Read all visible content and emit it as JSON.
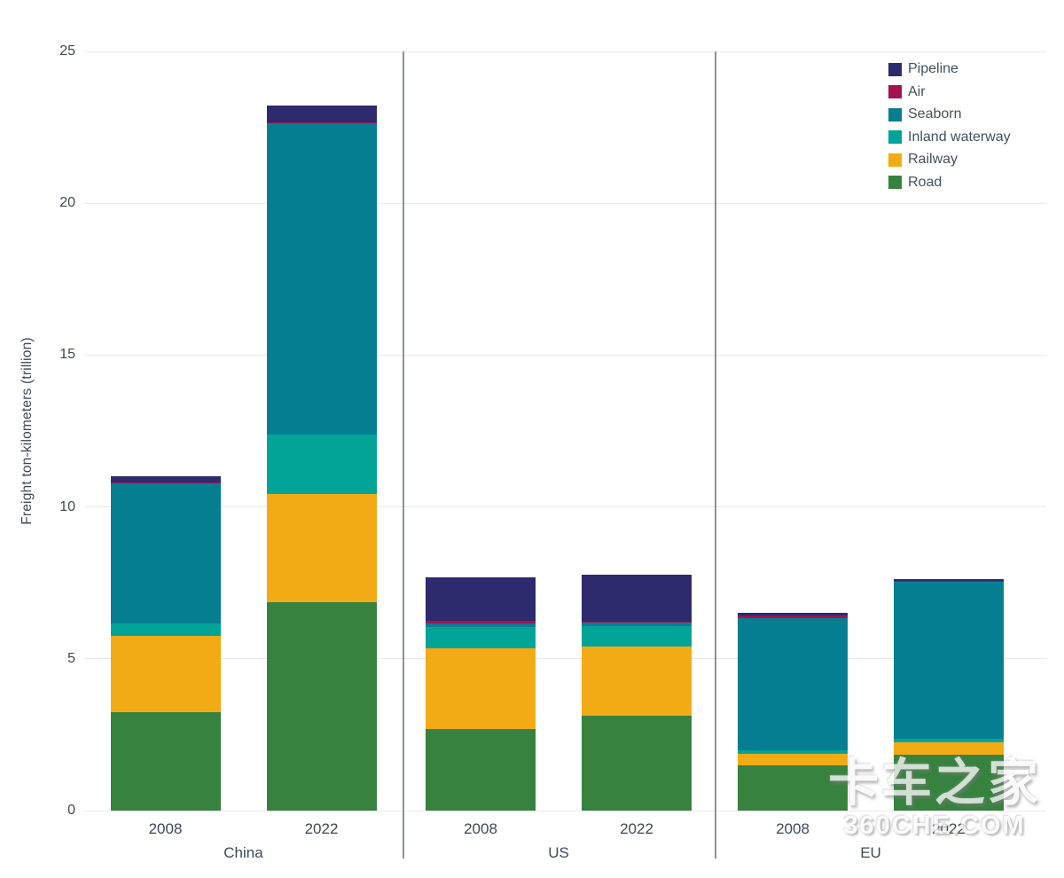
{
  "chart_data": {
    "type": "bar",
    "stacked": true,
    "ylabel": "Freight ton-kilometers (trillion)",
    "ylim": [
      0,
      25
    ],
    "yticks": [
      0,
      5,
      10,
      15,
      20,
      25
    ],
    "grid": true,
    "legend_position": "top-right",
    "legend_order": [
      "Pipeline",
      "Air",
      "Seaborn",
      "Inland waterway",
      "Railway",
      "Road"
    ],
    "groups": [
      {
        "label": "China",
        "years": [
          "2008",
          "2022"
        ]
      },
      {
        "label": "US",
        "years": [
          "2008",
          "2022"
        ]
      },
      {
        "label": "EU",
        "years": [
          "2008",
          "2022"
        ]
      }
    ],
    "bar_order_note": "values arrays are [China 2008, China 2022, US 2008, US 2022, EU 2008, EU 2022], stacked bottom-to-top in series order",
    "series": [
      {
        "name": "Road",
        "color": "#37823f",
        "values": [
          3.25,
          6.85,
          2.7,
          3.13,
          1.5,
          1.84
        ]
      },
      {
        "name": "Railway",
        "color": "#f3ab15",
        "values": [
          2.5,
          3.58,
          2.64,
          2.27,
          0.38,
          0.42
        ]
      },
      {
        "name": "Inland waterway",
        "color": "#02a498",
        "values": [
          0.4,
          1.95,
          0.71,
          0.67,
          0.12,
          0.11
        ]
      },
      {
        "name": "Seaborn",
        "color": "#057e92",
        "values": [
          4.65,
          10.25,
          0.11,
          0.12,
          4.35,
          5.18
        ]
      },
      {
        "name": "Air",
        "color": "#a31350",
        "values": [
          0.02,
          0.03,
          0.09,
          0.03,
          0.07,
          0.02
        ]
      },
      {
        "name": "Pipeline",
        "color": "#2d2a6e",
        "values": [
          0.2,
          0.55,
          1.44,
          1.55,
          0.08,
          0.06
        ]
      }
    ]
  },
  "watermark": {
    "line1": "卡车之家",
    "line2": "360CHE.COM"
  }
}
